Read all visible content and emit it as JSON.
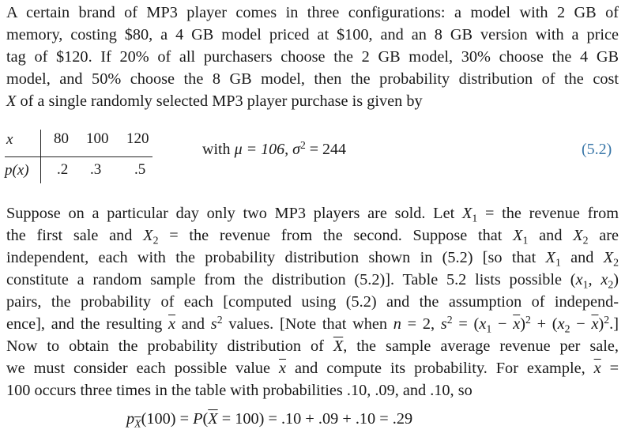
{
  "paragraph1": {
    "lines": [
      "A certain brand of MP3 player comes in three configurations: a model with 2 GB of",
      "memory, costing $80, a 4 GB model priced at $100, and an 8 GB version with a price",
      "tag of $120. If 20% of all purchasers choose the 2 GB model, 30% choose the 4 GB",
      "model, and 50% choose the 8 GB model, then the probability distribution of the cost"
    ],
    "last_line_var": "X",
    "last_line_rest": " of a single randomly selected MP3 player purchase is given by"
  },
  "distribution_table": {
    "row1_label": "x",
    "row2_label": "p(x)",
    "values": [
      "80",
      "100",
      "120"
    ],
    "probabilities": [
      ".2",
      ".3",
      ".5"
    ]
  },
  "stats_prefix": "with ",
  "stats_mu": "μ = 106, ",
  "stats_sigma": "σ",
  "stats_sigma_exp": "2",
  "stats_sigma_rest": " = 244",
  "equation_number": "(5.2)",
  "paragraph2": {
    "l1a": "Suppose on a particular day only two MP3 players are sold. Let ",
    "l1b": " = the revenue from",
    "l2a": "the first sale and ",
    "l2b": " = the revenue from the second. Suppose that ",
    "l2c": " and ",
    "l2d": " are",
    "l3a": "independent, each with the probability distribution shown in (5.2) [so that ",
    "l3b": " and ",
    "l4a": "constitute a random sample from the distribution (5.2)]. Table 5.2 lists possible (",
    "l4b": ", ",
    "l4c": ")",
    "l5": "pairs, the probability of each [computed using (5.2) and the assumption of independ-",
    "l6a": "ence], and the resulting ",
    "l6b": " and ",
    "l6c": " values. [Note that when ",
    "l6d": " = 2, ",
    "l6e": " = (",
    "l6f": " − ",
    "l6g": ")",
    "l6h": " + (",
    "l6i": " − ",
    "l6j": ")",
    "l6k": ".]",
    "l7a": "Now to obtain the probability distribution of ",
    "l7b": ", the sample average revenue per sale,",
    "l8a": "we must consider each possible value ",
    "l8b": " and compute its probability. For example, ",
    "l8c": " =",
    "l9": "100 occurs three times in the table with probabilities .10, .09, and .10, so"
  },
  "symbols": {
    "X": "X",
    "x": "x",
    "s": "s",
    "n": "n",
    "sub1": "1",
    "sub2": "2",
    "sq": "2"
  },
  "formula": {
    "p": "p",
    "p_sub": "X",
    "a": "(100) = ",
    "P": "P",
    "b": "(",
    "Xbar": "X",
    "c": " = 100) = .10 + .09 + .10 = .29"
  }
}
